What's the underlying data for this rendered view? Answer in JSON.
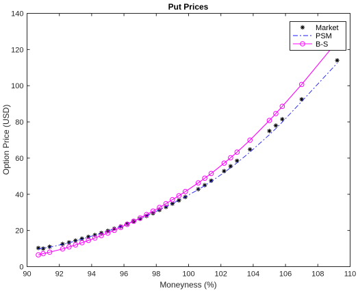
{
  "chart_data": {
    "type": "line",
    "title": "Put Prices",
    "xlabel": "Moneyness (%)",
    "ylabel": "Option Price (USD)",
    "xlim": [
      90,
      110
    ],
    "ylim": [
      0,
      140
    ],
    "xticks": [
      90,
      92,
      94,
      96,
      98,
      100,
      102,
      104,
      106,
      108,
      110
    ],
    "yticks": [
      0,
      20,
      40,
      60,
      80,
      100,
      120,
      140
    ],
    "grid": false,
    "legend_position": "top-right",
    "series": [
      {
        "name": "Market",
        "style": "marker-star",
        "color": "#000000",
        "x": [
          90.7,
          91.0,
          91.4,
          92.2,
          92.6,
          93.0,
          93.4,
          93.8,
          94.2,
          94.6,
          95.0,
          95.4,
          95.8,
          96.2,
          96.6,
          97.0,
          97.4,
          97.8,
          98.2,
          98.6,
          99.0,
          99.4,
          99.8,
          100.6,
          101.0,
          101.4,
          102.2,
          102.6,
          103.0,
          103.8,
          105.0,
          105.4,
          105.8,
          107.0,
          109.2
        ],
        "y": [
          10.3,
          10.0,
          11.0,
          12.5,
          13.4,
          14.4,
          15.5,
          16.5,
          17.5,
          18.6,
          19.8,
          21.0,
          22.2,
          23.7,
          25.0,
          26.4,
          28.0,
          29.5,
          31.3,
          33.0,
          34.8,
          36.6,
          38.5,
          42.8,
          45.0,
          47.5,
          52.8,
          55.5,
          58.5,
          64.8,
          75.0,
          78.0,
          81.5,
          92.5,
          114.0
        ]
      },
      {
        "name": "PSM",
        "style": "dash-dot",
        "color": "#1a1aff",
        "x": [
          90.7,
          91.0,
          91.4,
          92.2,
          92.6,
          93.0,
          93.4,
          93.8,
          94.2,
          94.6,
          95.0,
          95.4,
          95.8,
          96.2,
          96.6,
          97.0,
          97.4,
          97.8,
          98.2,
          98.6,
          99.0,
          99.4,
          99.8,
          100.6,
          101.0,
          101.4,
          102.2,
          102.6,
          103.0,
          103.8,
          105.0,
          105.4,
          105.8,
          107.0,
          109.2
        ],
        "y": [
          9.8,
          10.2,
          10.8,
          12.3,
          13.2,
          14.2,
          15.2,
          16.3,
          17.4,
          18.5,
          19.7,
          21.0,
          22.3,
          23.7,
          25.1,
          26.6,
          28.1,
          29.7,
          31.4,
          33.1,
          34.9,
          36.7,
          38.6,
          42.6,
          44.8,
          47.1,
          52.0,
          54.7,
          57.4,
          63.3,
          72.9,
          76.3,
          79.9,
          91.3,
          112.5
        ]
      },
      {
        "name": "B-S",
        "style": "line-circle",
        "color": "#ff00ff",
        "x": [
          90.7,
          91.0,
          91.4,
          92.2,
          92.6,
          93.0,
          93.4,
          93.8,
          94.2,
          94.6,
          95.0,
          95.4,
          95.8,
          96.2,
          96.6,
          97.0,
          97.4,
          97.8,
          98.2,
          98.6,
          99.0,
          99.4,
          99.8,
          100.6,
          101.0,
          101.4,
          102.2,
          102.6,
          103.0,
          103.8,
          105.0,
          105.4,
          105.8,
          107.0,
          109.2
        ],
        "y": [
          6.5,
          7.2,
          8.0,
          9.8,
          10.9,
          12.0,
          13.2,
          14.5,
          15.8,
          17.2,
          18.6,
          20.1,
          21.7,
          23.4,
          25.1,
          26.9,
          28.8,
          30.7,
          32.7,
          34.8,
          37.0,
          39.2,
          41.5,
          46.3,
          48.9,
          51.5,
          57.2,
          60.2,
          63.3,
          69.9,
          80.8,
          84.6,
          88.6,
          100.7,
          124.5
        ]
      }
    ]
  }
}
